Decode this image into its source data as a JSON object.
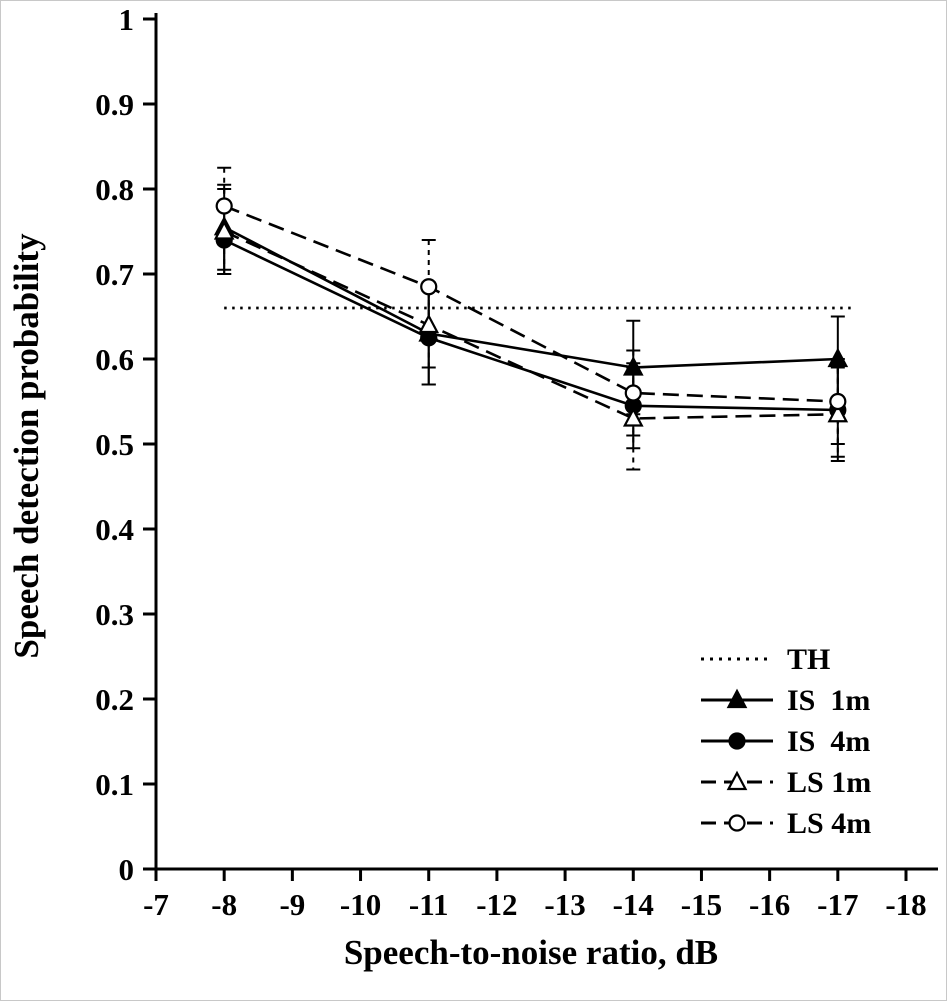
{
  "chart_data": {
    "type": "line",
    "title": "",
    "xlabel": "Speech-to-noise ratio, dB",
    "ylabel": "Speech detection probability",
    "xlim": [
      -7,
      -18
    ],
    "ylim": [
      0,
      1
    ],
    "x_ticks": [
      -7,
      -8,
      -9,
      -10,
      -11,
      -12,
      -13,
      -14,
      -15,
      -16,
      -17,
      -18
    ],
    "y_ticks": [
      0,
      0.1,
      0.2,
      0.3,
      0.4,
      0.5,
      0.6,
      0.7,
      0.8,
      0.9,
      1
    ],
    "grid": false,
    "x": [
      -8,
      -11,
      -14,
      -17
    ],
    "threshold": {
      "name": "TH",
      "value": 0.66,
      "x_start": -8,
      "x_end": -17.2,
      "line": "dotted"
    },
    "series": [
      {
        "name": "IS  1m",
        "line": "solid",
        "marker": "filled-triangle",
        "values": [
          0.755,
          0.63,
          0.59,
          0.6
        ],
        "errors": [
          0.05,
          0.06,
          0.055,
          0.05
        ]
      },
      {
        "name": "IS  4m",
        "line": "solid",
        "marker": "filled-circle",
        "values": [
          0.74,
          0.625,
          0.545,
          0.54
        ],
        "errors": [
          0.04,
          0.055,
          0.05,
          0.055
        ]
      },
      {
        "name": "LS 1m",
        "line": "dashed",
        "marker": "open-triangle",
        "values": [
          0.75,
          0.64,
          0.53,
          0.535
        ],
        "errors": [
          0.05,
          0.05,
          0.06,
          0.055
        ]
      },
      {
        "name": "LS 4m",
        "line": "dashed",
        "marker": "open-circle",
        "values": [
          0.78,
          0.685,
          0.56,
          0.55
        ],
        "errors": [
          0.045,
          0.055,
          0.05,
          0.05
        ]
      }
    ],
    "legend": {
      "position": "lower-right"
    },
    "colors": {
      "stroke": "#000000",
      "background": "#ffffff"
    }
  }
}
